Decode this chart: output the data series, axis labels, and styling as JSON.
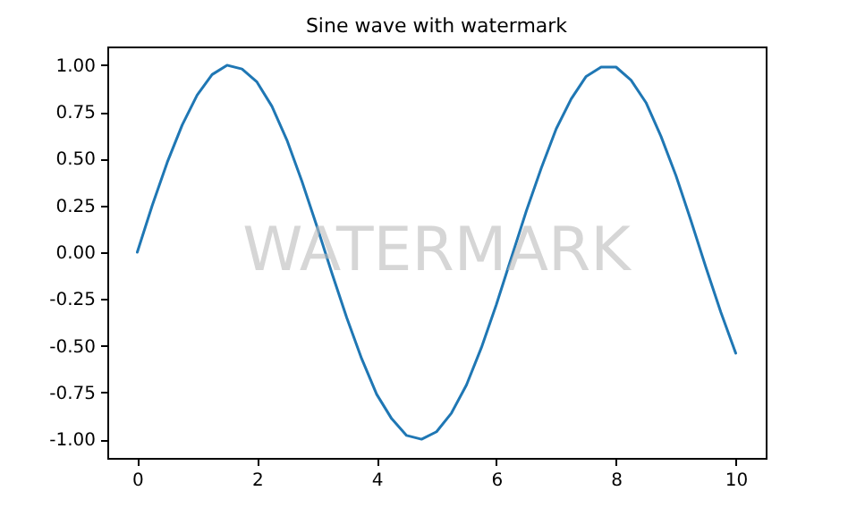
{
  "chart_data": {
    "type": "line",
    "title": "Sine wave with watermark",
    "annotations": [
      "WATERMARK"
    ],
    "x": [
      0,
      0.25,
      0.5,
      0.75,
      1,
      1.25,
      1.5,
      1.75,
      2,
      2.25,
      2.5,
      2.75,
      3,
      3.25,
      3.5,
      3.75,
      4,
      4.25,
      4.5,
      4.75,
      5,
      5.25,
      5.5,
      5.75,
      6,
      6.25,
      6.5,
      6.75,
      7,
      7.25,
      7.5,
      7.75,
      8,
      8.25,
      8.5,
      8.75,
      9,
      9.25,
      9.5,
      9.75,
      10
    ],
    "series": [
      {
        "color": "#1f77b4",
        "values": [
          0,
          0.25,
          0.48,
          0.68,
          0.84,
          0.95,
          1.0,
          0.98,
          0.91,
          0.78,
          0.6,
          0.38,
          0.14,
          -0.11,
          -0.35,
          -0.57,
          -0.76,
          -0.89,
          -0.98,
          -1.0,
          -0.96,
          -0.86,
          -0.71,
          -0.51,
          -0.28,
          -0.03,
          0.22,
          0.45,
          0.66,
          0.82,
          0.94,
          0.99,
          0.99,
          0.92,
          0.8,
          0.62,
          0.41,
          0.17,
          -0.08,
          -0.32,
          -0.54
        ]
      }
    ],
    "xlim": [
      -0.5,
      10.5
    ],
    "xticks": [
      0,
      2,
      4,
      6,
      8,
      10
    ],
    "ylim": [
      -1.1,
      1.1
    ],
    "yticks": [
      {
        "value": -1,
        "label": "-1.00"
      },
      {
        "value": -0.75,
        "label": "-0.75"
      },
      {
        "value": -0.5,
        "label": "-0.50"
      },
      {
        "value": -0.25,
        "label": "-0.25"
      },
      {
        "value": 0,
        "label": "0.00"
      },
      {
        "value": 0.25,
        "label": "0.25"
      },
      {
        "value": 0.5,
        "label": "0.50"
      },
      {
        "value": 0.75,
        "label": "0.75"
      },
      {
        "value": 1,
        "label": "1.00"
      }
    ],
    "grid": false,
    "marker": "none",
    "line_style": "solid"
  }
}
